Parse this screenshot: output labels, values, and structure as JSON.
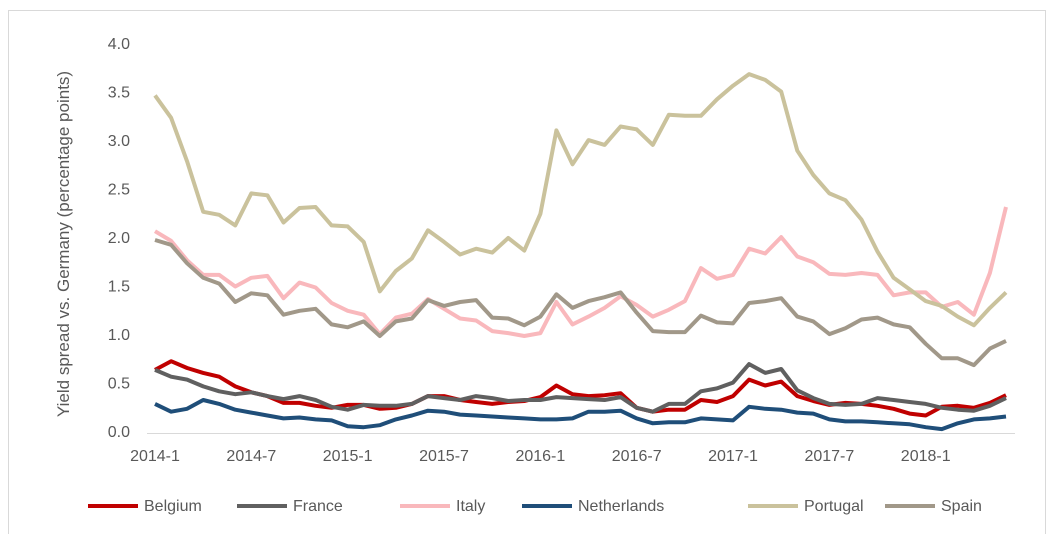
{
  "chart_data": {
    "type": "line",
    "y_label": "Yield spread vs. Germany (percentage points)",
    "categories": [
      "2014-1",
      null,
      null,
      null,
      null,
      null,
      "2014-7",
      null,
      null,
      null,
      null,
      null,
      "2015-1",
      null,
      null,
      null,
      null,
      null,
      "2015-7",
      null,
      null,
      null,
      null,
      null,
      "2016-1",
      null,
      null,
      null,
      null,
      null,
      "2016-7",
      null,
      null,
      null,
      null,
      null,
      "2017-1",
      null,
      null,
      null,
      null,
      null,
      "2017-7",
      null,
      null,
      null,
      null,
      null,
      "2018-1",
      null,
      null,
      null,
      null,
      null
    ],
    "ylim": [
      0,
      4
    ],
    "yticks": [
      {
        "value": 0,
        "label": "0.0"
      },
      {
        "value": 0.5,
        "label": "0.5"
      },
      {
        "value": 1,
        "label": "1.0"
      },
      {
        "value": 1.5,
        "label": "1.5"
      },
      {
        "value": 2,
        "label": "2.0"
      },
      {
        "value": 2.5,
        "label": "2.5"
      },
      {
        "value": 3,
        "label": "3.0"
      },
      {
        "value": 3.5,
        "label": "3.5"
      },
      {
        "value": 4,
        "label": "4.0"
      }
    ],
    "grid": false,
    "legend": "bottom",
    "series": [
      {
        "name": "Belgium",
        "color": "#c00000",
        "values": [
          0.65,
          0.74,
          0.67,
          0.62,
          0.58,
          0.48,
          0.42,
          0.38,
          0.31,
          0.31,
          0.28,
          0.26,
          0.29,
          0.29,
          0.25,
          0.26,
          0.3,
          0.38,
          0.38,
          0.34,
          0.32,
          0.3,
          0.32,
          0.33,
          0.37,
          0.49,
          0.4,
          0.38,
          0.39,
          0.41,
          0.26,
          0.22,
          0.24,
          0.24,
          0.34,
          0.32,
          0.38,
          0.55,
          0.49,
          0.53,
          0.38,
          0.33,
          0.29,
          0.31,
          0.3,
          0.28,
          0.25,
          0.2,
          0.18,
          0.27,
          0.28,
          0.26,
          0.31,
          0.39
        ]
      },
      {
        "name": "France",
        "color": "#606060",
        "values": [
          0.65,
          0.58,
          0.55,
          0.48,
          0.43,
          0.4,
          0.42,
          0.38,
          0.35,
          0.38,
          0.34,
          0.27,
          0.24,
          0.29,
          0.28,
          0.28,
          0.3,
          0.38,
          0.36,
          0.34,
          0.38,
          0.36,
          0.33,
          0.34,
          0.34,
          0.37,
          0.36,
          0.35,
          0.34,
          0.37,
          0.26,
          0.22,
          0.3,
          0.3,
          0.43,
          0.46,
          0.52,
          0.71,
          0.62,
          0.66,
          0.44,
          0.36,
          0.3,
          0.29,
          0.3,
          0.36,
          0.34,
          0.32,
          0.3,
          0.26,
          0.24,
          0.23,
          0.28,
          0.36
        ]
      },
      {
        "name": "Italy",
        "color": "#f9b8bc",
        "values": [
          2.08,
          1.98,
          1.78,
          1.63,
          1.63,
          1.51,
          1.6,
          1.62,
          1.39,
          1.55,
          1.5,
          1.34,
          1.26,
          1.22,
          1.02,
          1.19,
          1.23,
          1.38,
          1.28,
          1.18,
          1.16,
          1.05,
          1.03,
          1.0,
          1.03,
          1.35,
          1.12,
          1.2,
          1.29,
          1.41,
          1.32,
          1.2,
          1.27,
          1.36,
          1.7,
          1.59,
          1.63,
          1.9,
          1.85,
          2.02,
          1.82,
          1.76,
          1.64,
          1.63,
          1.65,
          1.63,
          1.42,
          1.45,
          1.45,
          1.3,
          1.35,
          1.22,
          1.65,
          2.33
        ]
      },
      {
        "name": "Netherlands",
        "color": "#1f4e79",
        "values": [
          0.3,
          0.22,
          0.25,
          0.34,
          0.3,
          0.24,
          0.21,
          0.18,
          0.15,
          0.16,
          0.14,
          0.13,
          0.07,
          0.06,
          0.08,
          0.14,
          0.18,
          0.23,
          0.22,
          0.19,
          0.18,
          0.17,
          0.16,
          0.15,
          0.14,
          0.14,
          0.15,
          0.22,
          0.22,
          0.23,
          0.15,
          0.1,
          0.11,
          0.11,
          0.15,
          0.14,
          0.13,
          0.27,
          0.25,
          0.24,
          0.21,
          0.2,
          0.14,
          0.12,
          0.12,
          0.11,
          0.1,
          0.09,
          0.06,
          0.04,
          0.1,
          0.14,
          0.15,
          0.17
        ]
      },
      {
        "name": "Portugal",
        "color": "#cac29c",
        "values": [
          3.48,
          3.25,
          2.8,
          2.28,
          2.25,
          2.14,
          2.47,
          2.45,
          2.17,
          2.32,
          2.33,
          2.14,
          2.13,
          1.97,
          1.46,
          1.67,
          1.8,
          2.09,
          1.97,
          1.84,
          1.9,
          1.86,
          2.01,
          1.88,
          2.26,
          3.12,
          2.77,
          3.02,
          2.97,
          3.16,
          3.13,
          2.97,
          3.28,
          3.27,
          3.27,
          3.44,
          3.58,
          3.7,
          3.64,
          3.52,
          2.91,
          2.66,
          2.47,
          2.4,
          2.2,
          1.87,
          1.6,
          1.48,
          1.36,
          1.31,
          1.2,
          1.11,
          1.29,
          1.45
        ]
      },
      {
        "name": "Spain",
        "color": "#a19889",
        "values": [
          1.99,
          1.94,
          1.75,
          1.6,
          1.54,
          1.35,
          1.44,
          1.42,
          1.22,
          1.26,
          1.28,
          1.12,
          1.09,
          1.15,
          1.0,
          1.15,
          1.18,
          1.37,
          1.31,
          1.35,
          1.37,
          1.19,
          1.18,
          1.11,
          1.2,
          1.43,
          1.29,
          1.36,
          1.4,
          1.45,
          1.24,
          1.05,
          1.04,
          1.04,
          1.21,
          1.14,
          1.13,
          1.34,
          1.36,
          1.39,
          1.2,
          1.15,
          1.02,
          1.08,
          1.17,
          1.19,
          1.12,
          1.09,
          0.92,
          0.77,
          0.77,
          0.7,
          0.87,
          0.95
        ]
      }
    ]
  }
}
